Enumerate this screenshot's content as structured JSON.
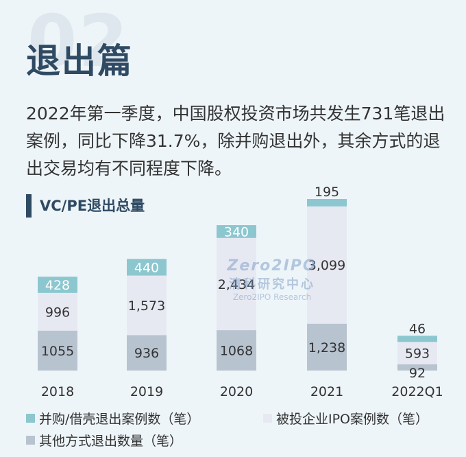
{
  "header": {
    "bg_number": "02",
    "title": "退出篇",
    "intro": "2022年第一季度，中国股权投资市场共发生731笔退出案例，同比下降31.7%，除并购退出外，其余方式的退出交易均有不同程度下降。"
  },
  "watermark": {
    "logo": "Zero2IPO",
    "cn": "清科研究中心",
    "en": "Zero2IPO Research"
  },
  "colors": {
    "background": "#eef5f9",
    "title": "#2f4a63",
    "ma": "#8cc7cf",
    "ipo": "#e7e9f2",
    "other": "#b8c3d0"
  },
  "chart_data": {
    "type": "bar",
    "stacked": true,
    "title": "VC/PE退出总量",
    "categories": [
      "2018",
      "2019",
      "2020",
      "2021",
      "2022Q1"
    ],
    "series": [
      {
        "name": "其他方式退出数量（笔）",
        "key": "other",
        "values": [
          1055,
          936,
          1068,
          1238,
          92
        ],
        "labels": [
          "1055",
          "936",
          "1068",
          "1,238",
          "92"
        ]
      },
      {
        "name": "被投企业IPO案例数（笔）",
        "key": "ipo",
        "values": [
          996,
          1573,
          2434,
          3099,
          593
        ],
        "labels": [
          "996",
          "1,573",
          "2,434",
          "3,099",
          "593"
        ]
      },
      {
        "name": "并购/借壳退出案例数（笔）",
        "key": "ma",
        "values": [
          428,
          440,
          340,
          195,
          46
        ],
        "labels": [
          "428",
          "440",
          "340",
          "195",
          "46"
        ]
      }
    ],
    "legend_position": "bottom",
    "grid": false
  }
}
